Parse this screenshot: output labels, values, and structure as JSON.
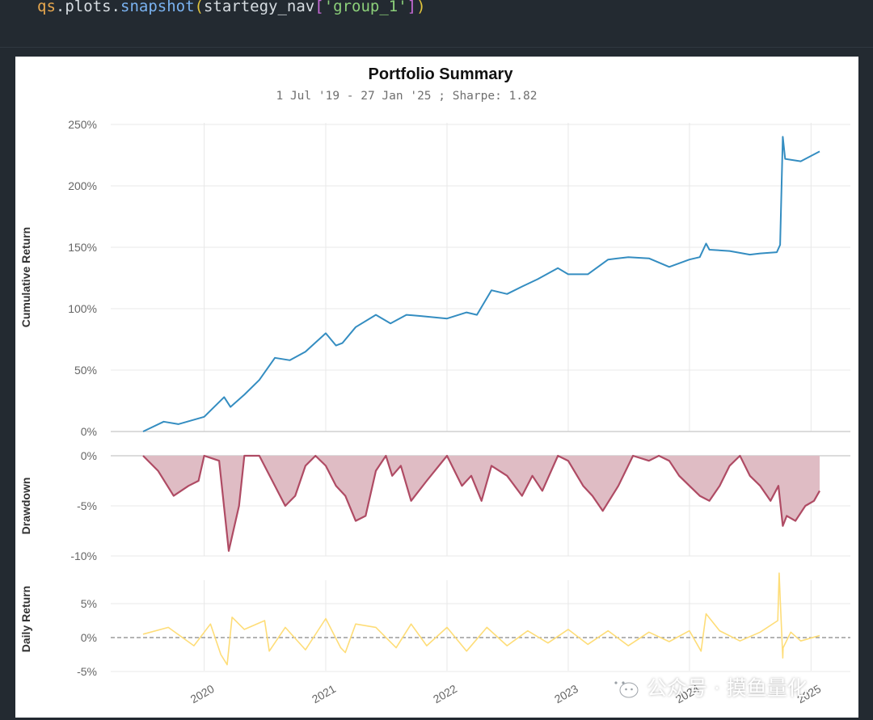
{
  "code": {
    "obj": "qs",
    "module": "plots",
    "func": "snapshot",
    "arg_var": "startegy_nav",
    "arg_key": "'group_1'"
  },
  "watermark": {
    "text": "公众号 · 摸鱼量化",
    "icon": "wechat-icon"
  },
  "colors": {
    "cumulative": "#348dc1",
    "drawdown": "#af4b64",
    "drawdown_fill": "#dfbcc4",
    "daily": "#fedd78",
    "grid": "#e8e8e8",
    "zero_line": "#888888"
  },
  "chart_data": {
    "type": "line",
    "title": "Portfolio Summary",
    "subtitle": "1 Jul '19 - 27 Jan '25 ;  Sharpe: 1.82",
    "x_ticks": [
      "2020",
      "2021",
      "2022",
      "2023",
      "2024",
      "2025"
    ],
    "x_range": [
      "2019-07-01",
      "2025-01-27"
    ],
    "grid": true,
    "panels": [
      {
        "name": "cumulative",
        "ylabel": "Cumulative Return",
        "yticks": [
          "250%",
          "200%",
          "150%",
          "100%",
          "50%",
          "0%"
        ],
        "ylim": [
          0,
          250
        ],
        "series": [
          {
            "unit": "%",
            "x": [
              "2019-07-01",
              "2019-09-01",
              "2019-10-15",
              "2020-01-01",
              "2020-03-01",
              "2020-03-20",
              "2020-05-01",
              "2020-06-15",
              "2020-08-01",
              "2020-09-15",
              "2020-11-01",
              "2021-01-01",
              "2021-02-01",
              "2021-02-20",
              "2021-04-01",
              "2021-06-01",
              "2021-07-15",
              "2021-09-01",
              "2021-10-15",
              "2022-01-01",
              "2022-03-01",
              "2022-04-01",
              "2022-05-15",
              "2022-07-01",
              "2022-08-15",
              "2022-10-01",
              "2022-12-01",
              "2023-01-01",
              "2023-03-01",
              "2023-05-01",
              "2023-07-01",
              "2023-09-01",
              "2023-11-01",
              "2024-01-01",
              "2024-02-01",
              "2024-02-20",
              "2024-03-01",
              "2024-05-01",
              "2024-07-01",
              "2024-08-01",
              "2024-09-20",
              "2024-09-30",
              "2024-10-08",
              "2024-10-15",
              "2024-12-01",
              "2025-01-27"
            ],
            "y": [
              0,
              8,
              6,
              12,
              28,
              20,
              30,
              42,
              60,
              58,
              65,
              80,
              70,
              72,
              85,
              95,
              88,
              95,
              94,
              92,
              97,
              95,
              115,
              112,
              118,
              124,
              133,
              128,
              128,
              140,
              142,
              141,
              134,
              140,
              142,
              153,
              148,
              147,
              144,
              145,
              146,
              152,
              240,
              222,
              220,
              228
            ]
          }
        ]
      },
      {
        "name": "drawdown",
        "ylabel": "Drawdown",
        "yticks": [
          "0%",
          "-5%",
          "-10%"
        ],
        "ylim": [
          -10,
          0
        ],
        "series": [
          {
            "unit": "%",
            "x": [
              "2019-07-01",
              "2019-08-15",
              "2019-10-01",
              "2019-11-15",
              "2019-12-15",
              "2020-01-01",
              "2020-02-15",
              "2020-03-15",
              "2020-04-15",
              "2020-05-01",
              "2020-06-15",
              "2020-08-01",
              "2020-09-01",
              "2020-10-01",
              "2020-11-01",
              "2020-12-01",
              "2021-01-01",
              "2021-02-01",
              "2021-03-01",
              "2021-04-01",
              "2021-05-01",
              "2021-06-01",
              "2021-07-01",
              "2021-07-20",
              "2021-08-15",
              "2021-09-15",
              "2021-11-01",
              "2022-01-01",
              "2022-02-15",
              "2022-03-15",
              "2022-04-15",
              "2022-05-15",
              "2022-07-01",
              "2022-08-15",
              "2022-09-15",
              "2022-10-15",
              "2022-12-01",
              "2023-01-01",
              "2023-02-15",
              "2023-03-15",
              "2023-04-15",
              "2023-06-01",
              "2023-07-15",
              "2023-09-01",
              "2023-10-01",
              "2023-11-01",
              "2023-12-01",
              "2024-01-01",
              "2024-02-01",
              "2024-03-01",
              "2024-04-01",
              "2024-05-01",
              "2024-06-01",
              "2024-07-01",
              "2024-08-01",
              "2024-09-01",
              "2024-09-25",
              "2024-10-08",
              "2024-10-20",
              "2024-11-15",
              "2024-12-15",
              "2025-01-10",
              "2025-01-27"
            ],
            "y": [
              0,
              -1.5,
              -4,
              -3,
              -2.5,
              0,
              -0.5,
              -9.5,
              -5,
              0,
              0,
              -3,
              -5,
              -4,
              -1,
              0,
              -1,
              -3,
              -4,
              -6.5,
              -6,
              -1.5,
              0,
              -2,
              -1,
              -4.5,
              -2.5,
              0,
              -3,
              -2,
              -4.5,
              -1,
              -2,
              -4,
              -2,
              -3.5,
              0,
              -0.5,
              -3,
              -4,
              -5.5,
              -3,
              0,
              -0.5,
              0,
              -0.5,
              -2,
              -3,
              -4,
              -4.5,
              -3,
              -1,
              0,
              -2,
              -3,
              -4.5,
              -3,
              -7,
              -6,
              -6.5,
              -5,
              -4.5,
              -3.5
            ]
          }
        ]
      },
      {
        "name": "daily",
        "ylabel": "Daily Return",
        "yticks": [
          "5%",
          "0%",
          "-5%"
        ],
        "ylim": [
          -5,
          10
        ],
        "series": [
          {
            "unit": "%",
            "x": [
              "2019-07-01",
              "2019-09-15",
              "2019-12-01",
              "2020-01-20",
              "2020-02-20",
              "2020-03-10",
              "2020-03-25",
              "2020-05-01",
              "2020-07-01",
              "2020-07-15",
              "2020-09-01",
              "2020-11-01",
              "2021-01-01",
              "2021-02-15",
              "2021-03-01",
              "2021-04-01",
              "2021-06-01",
              "2021-08-01",
              "2021-09-15",
              "2021-11-01",
              "2022-01-01",
              "2022-03-01",
              "2022-05-01",
              "2022-07-01",
              "2022-09-01",
              "2022-11-01",
              "2023-01-01",
              "2023-03-01",
              "2023-05-01",
              "2023-07-01",
              "2023-09-01",
              "2023-11-01",
              "2024-01-01",
              "2024-02-05",
              "2024-02-20",
              "2024-04-01",
              "2024-06-01",
              "2024-08-01",
              "2024-09-23",
              "2024-09-27",
              "2024-09-30",
              "2024-10-08",
              "2024-10-09",
              "2024-11-01",
              "2024-12-01",
              "2025-01-27"
            ],
            "y": [
              0.5,
              1.5,
              -1.2,
              2,
              -2.5,
              -4,
              3,
              1.2,
              2.5,
              -2,
              1.5,
              -1.8,
              2.8,
              -1.5,
              -2.2,
              2,
              1.5,
              -1.5,
              2,
              -1.2,
              1.5,
              -2,
              1.5,
              -1.2,
              1,
              -0.8,
              1.2,
              -1,
              1,
              -1.2,
              0.8,
              -0.6,
              1,
              -2,
              3.5,
              1,
              -0.5,
              0.8,
              2.5,
              9.5,
              6,
              -3,
              -1.5,
              0.8,
              -0.5,
              0.3
            ]
          }
        ]
      }
    ]
  }
}
